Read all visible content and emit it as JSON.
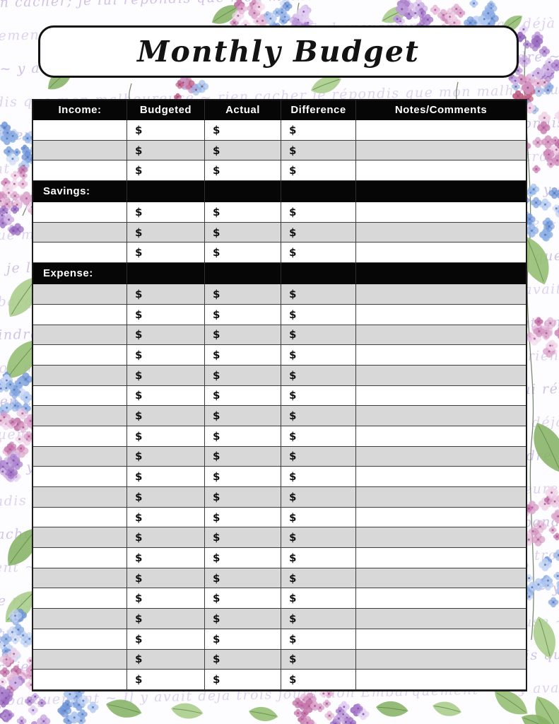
{
  "page": {
    "title": "Monthly Budget"
  },
  "table": {
    "header_row": [
      "Income:",
      "Budgeted",
      "Actual",
      "Difference",
      "Notes/Comments"
    ],
    "currency_symbol": "$",
    "sections": [
      {
        "name": "income",
        "label": null,
        "rows": 3,
        "first_shade": "white"
      },
      {
        "name": "savings",
        "label": "Savings:",
        "rows": 3,
        "first_shade": "white"
      },
      {
        "name": "expense",
        "label": "Expense:",
        "rows": 20,
        "first_shade": "gray"
      }
    ]
  },
  "background": {
    "script_phrases": [
      "ne lui rien cacher; je lui répondis que mon malheur",
      "mon Embarquement ~ Il y avait déjà trois jours",
      "me faire rejoindre ~ y attendre ~ pour aller malgré moi",
      "je répondis que mon malheureuse ~ rien cacher"
    ]
  },
  "colors": {
    "table_header_bg": "#000000",
    "row_gray": "#d8d8d8",
    "row_white": "#ffffff",
    "grid_border": "#3c3c3c",
    "script_text": "#b49dd6",
    "flower_blue": "#8fb0e4",
    "flower_pink": "#d190bd",
    "flower_purple": "#ab82cc",
    "leaf_green": "#93bd72"
  }
}
